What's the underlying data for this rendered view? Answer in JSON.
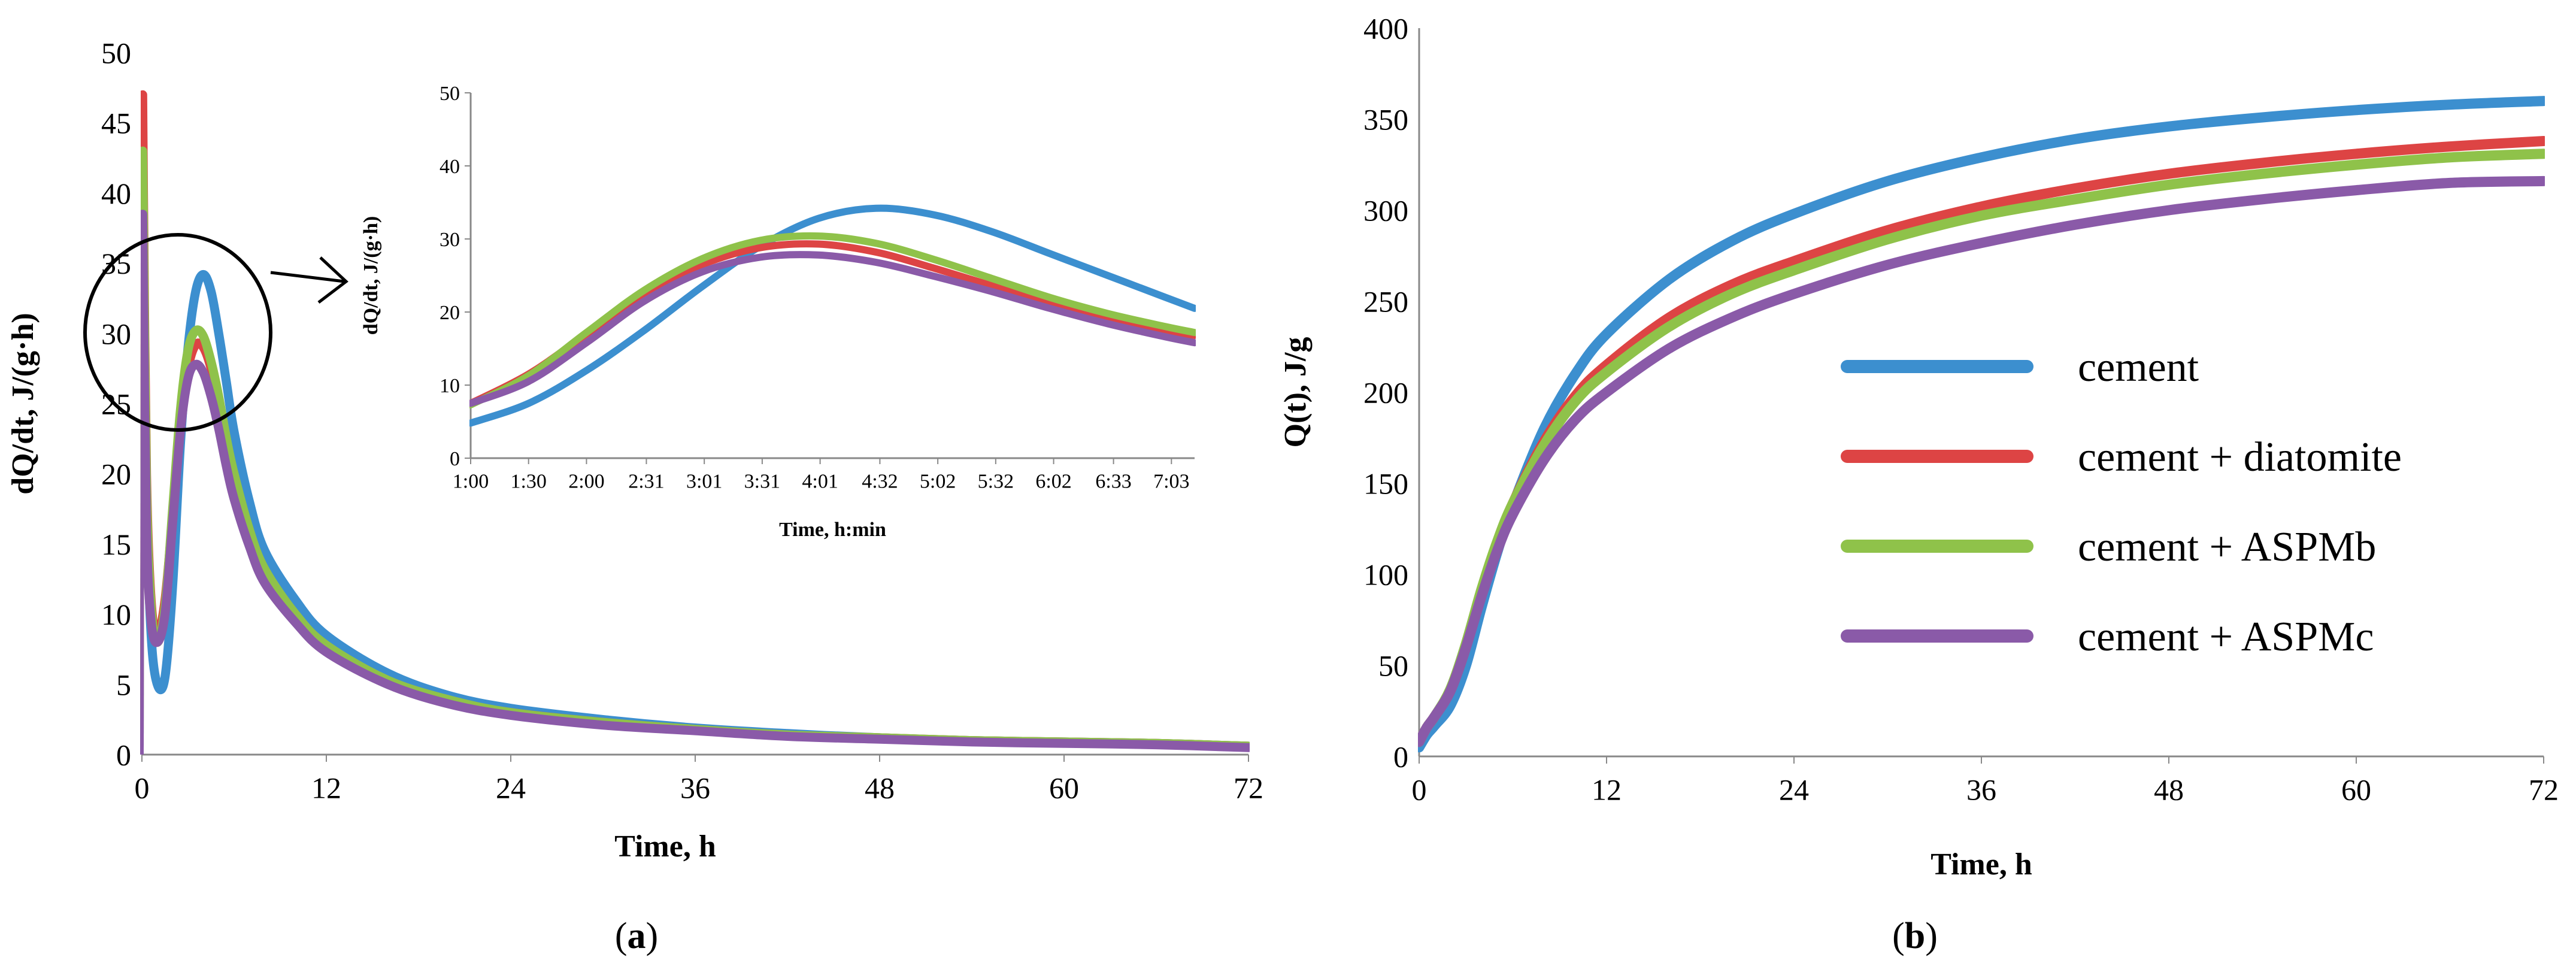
{
  "captions": {
    "a": "a",
    "b": "b"
  },
  "legend_entries": [
    {
      "label": "cement",
      "color": "#3c8fcf"
    },
    {
      "label": "cement + diatomite",
      "color": "#dd4444"
    },
    {
      "label": "cement + ASPMb",
      "color": "#8fc24a"
    },
    {
      "label": "cement + ASPMc",
      "color": "#8a5aa8"
    }
  ],
  "chart_data": [
    {
      "id": "a-main",
      "type": "line",
      "title": "",
      "xlabel": "Time, h",
      "ylabel": "dQ/dt, J/(g·h)",
      "xlim": [
        0,
        72
      ],
      "ylim": [
        0,
        50
      ],
      "xticks": [
        "0",
        "12",
        "24",
        "36",
        "48",
        "60",
        "72"
      ],
      "xtick_values": [
        0,
        12,
        24,
        36,
        48,
        60,
        72
      ],
      "yticks": [
        "0",
        "5",
        "10",
        "15",
        "20",
        "25",
        "30",
        "35",
        "40",
        "45",
        "50"
      ],
      "ytick_values": [
        0,
        5,
        10,
        15,
        20,
        25,
        30,
        35,
        40,
        45,
        50
      ],
      "series": [
        {
          "name": "cement",
          "color": "#3c8fcf",
          "x": [
            0.05,
            0.1,
            0.3,
            0.6,
            1.0,
            1.5,
            2.0,
            2.5,
            3.0,
            3.5,
            4.0,
            4.5,
            5.0,
            5.5,
            6.0,
            7.0,
            8.0,
            10.0,
            12.0,
            16.0,
            20.0,
            24.0,
            30.0,
            36.0,
            42.0,
            48.0,
            54.0,
            60.0,
            66.0,
            72.0
          ],
          "y": [
            38.0,
            34.0,
            18.0,
            8.5,
            5.0,
            5.5,
            12.0,
            22.0,
            29.0,
            33.0,
            34.2,
            33.0,
            30.0,
            26.5,
            23.0,
            18.0,
            14.5,
            11.0,
            8.5,
            5.8,
            4.2,
            3.3,
            2.5,
            1.9,
            1.5,
            1.2,
            1.0,
            0.9,
            0.8,
            0.6
          ]
        },
        {
          "name": "cement + diatomite",
          "color": "#dd4444",
          "x": [
            0.05,
            0.1,
            0.3,
            0.6,
            1.0,
            1.5,
            2.0,
            2.5,
            3.0,
            3.5,
            4.0,
            4.5,
            5.0,
            5.5,
            6.0,
            7.0,
            8.0,
            10.0,
            12.0,
            16.0,
            20.0,
            24.0,
            30.0,
            36.0,
            42.0,
            48.0,
            54.0,
            60.0,
            66.0,
            72.0
          ],
          "y": [
            47.0,
            40.0,
            20.0,
            11.0,
            8.5,
            11.0,
            17.0,
            23.5,
            27.5,
            29.2,
            29.0,
            27.5,
            25.0,
            22.0,
            19.5,
            15.5,
            12.8,
            9.8,
            7.6,
            5.2,
            3.8,
            3.0,
            2.3,
            1.8,
            1.4,
            1.2,
            1.0,
            0.9,
            0.8,
            0.6
          ]
        },
        {
          "name": "cement + ASPMb",
          "color": "#8fc24a",
          "x": [
            0.05,
            0.1,
            0.3,
            0.6,
            1.0,
            1.5,
            2.0,
            2.5,
            3.0,
            3.5,
            4.0,
            4.5,
            5.0,
            5.5,
            6.0,
            7.0,
            8.0,
            10.0,
            12.0,
            16.0,
            20.0,
            24.0,
            30.0,
            36.0,
            42.0,
            48.0,
            54.0,
            60.0,
            66.0,
            72.0
          ],
          "y": [
            43.0,
            38.0,
            19.0,
            10.5,
            8.0,
            10.5,
            17.5,
            24.5,
            28.8,
            30.2,
            29.8,
            28.0,
            25.5,
            22.5,
            20.0,
            16.0,
            13.2,
            10.0,
            7.8,
            5.3,
            3.9,
            3.0,
            2.3,
            1.8,
            1.4,
            1.2,
            1.0,
            0.9,
            0.8,
            0.6
          ]
        },
        {
          "name": "cement + ASPMc",
          "color": "#8a5aa8",
          "x": [
            0.05,
            0.1,
            0.3,
            0.6,
            1.0,
            1.5,
            2.0,
            2.5,
            3.0,
            3.5,
            4.0,
            4.5,
            5.0,
            5.5,
            6.0,
            7.0,
            8.0,
            10.0,
            12.0,
            16.0,
            20.0,
            24.0,
            30.0,
            36.0,
            42.0,
            48.0,
            54.0,
            60.0,
            66.0,
            72.0
          ],
          "y": [
            38.5,
            33.0,
            16.0,
            9.5,
            8.0,
            10.0,
            16.5,
            23.0,
            26.8,
            27.8,
            27.2,
            25.5,
            23.2,
            20.5,
            18.2,
            14.8,
            12.2,
            9.4,
            7.3,
            5.0,
            3.6,
            2.8,
            2.1,
            1.7,
            1.3,
            1.1,
            0.9,
            0.8,
            0.7,
            0.5
          ]
        }
      ]
    },
    {
      "id": "a-inset",
      "type": "line",
      "title": "",
      "xlabel": "Time, h:min",
      "ylabel": "dQ/dt, J/(g·h)",
      "xlim": [
        1.0,
        7.25
      ],
      "ylim": [
        0,
        50
      ],
      "xticks": [
        "1:00",
        "1:30",
        "2:00",
        "2:31",
        "3:01",
        "3:31",
        "4:01",
        "4:32",
        "5:02",
        "5:32",
        "6:02",
        "6:33",
        "7:03"
      ],
      "xtick_values": [
        1.0,
        1.5,
        2.0,
        2.517,
        3.017,
        3.517,
        4.017,
        4.533,
        5.033,
        5.533,
        6.033,
        6.55,
        7.05
      ],
      "yticks": [
        "0",
        "10",
        "20",
        "30",
        "40",
        "50"
      ],
      "ytick_values": [
        0,
        10,
        20,
        30,
        40,
        50
      ],
      "series": [
        {
          "name": "cement",
          "color": "#3c8fcf",
          "x": [
            1.0,
            1.5,
            2.0,
            2.5,
            3.0,
            3.5,
            4.0,
            4.5,
            5.0,
            5.5,
            6.0,
            6.5,
            7.0,
            7.25
          ],
          "y": [
            4.8,
            7.5,
            12.0,
            17.5,
            23.5,
            29.0,
            32.8,
            34.2,
            33.3,
            31.0,
            28.0,
            25.0,
            22.0,
            20.5
          ]
        },
        {
          "name": "cement + diatomite",
          "color": "#dd4444",
          "x": [
            1.0,
            1.5,
            2.0,
            2.5,
            3.0,
            3.5,
            4.0,
            4.5,
            5.0,
            5.5,
            6.0,
            6.5,
            7.0,
            7.25
          ],
          "y": [
            7.5,
            11.5,
            17.0,
            22.5,
            26.5,
            28.8,
            29.3,
            28.2,
            26.0,
            23.6,
            21.3,
            19.2,
            17.5,
            16.8
          ]
        },
        {
          "name": "cement + ASPMb",
          "color": "#8fc24a",
          "x": [
            1.0,
            1.5,
            2.0,
            2.5,
            3.0,
            3.5,
            4.0,
            4.5,
            5.0,
            5.5,
            6.0,
            6.5,
            7.0,
            7.25
          ],
          "y": [
            7.3,
            11.3,
            17.2,
            23.0,
            27.3,
            29.8,
            30.4,
            29.4,
            27.2,
            24.6,
            22.0,
            19.8,
            18.0,
            17.2
          ]
        },
        {
          "name": "cement + ASPMc",
          "color": "#8a5aa8",
          "x": [
            1.0,
            1.5,
            2.0,
            2.5,
            3.0,
            3.5,
            4.0,
            4.5,
            5.0,
            5.5,
            6.0,
            6.5,
            7.0,
            7.25
          ],
          "y": [
            7.5,
            10.5,
            15.8,
            21.5,
            25.5,
            27.5,
            27.8,
            26.8,
            24.9,
            22.8,
            20.5,
            18.4,
            16.6,
            15.8
          ]
        }
      ]
    },
    {
      "id": "b",
      "type": "line",
      "title": "",
      "xlabel": "Time, h",
      "ylabel": "Q(t), J/g",
      "xlim": [
        0,
        72
      ],
      "ylim": [
        0,
        400
      ],
      "xticks": [
        "0",
        "12",
        "24",
        "36",
        "48",
        "60",
        "72"
      ],
      "xtick_values": [
        0,
        12,
        24,
        36,
        48,
        60,
        72
      ],
      "yticks": [
        "0",
        "50",
        "100",
        "150",
        "200",
        "250",
        "300",
        "350",
        "400"
      ],
      "ytick_values": [
        0,
        50,
        100,
        150,
        200,
        250,
        300,
        350,
        400
      ],
      "series": [
        {
          "name": "cement",
          "color": "#3c8fcf",
          "x": [
            0,
            0.5,
            1,
            2,
            3,
            4,
            5,
            6,
            8,
            10,
            12,
            16,
            20,
            24,
            30,
            36,
            42,
            48,
            54,
            60,
            66,
            72
          ],
          "y": [
            5,
            12,
            17,
            28,
            50,
            82,
            112,
            138,
            180,
            210,
            232,
            262,
            283,
            298,
            316,
            329,
            339,
            346,
            351,
            355,
            358,
            360
          ]
        },
        {
          "name": "cement + diatomite",
          "color": "#dd4444",
          "x": [
            0,
            0.5,
            1,
            2,
            3,
            4,
            5,
            6,
            8,
            10,
            12,
            16,
            20,
            24,
            30,
            36,
            42,
            48,
            54,
            60,
            66,
            72
          ],
          "y": [
            8,
            16,
            22,
            36,
            60,
            90,
            117,
            139,
            173,
            198,
            215,
            241,
            259,
            272,
            289,
            302,
            312,
            320,
            326,
            331,
            335,
            338
          ]
        },
        {
          "name": "cement + ASPMb",
          "color": "#8fc24a",
          "x": [
            0,
            0.5,
            1,
            2,
            3,
            4,
            5,
            6,
            8,
            10,
            12,
            16,
            20,
            24,
            30,
            36,
            42,
            48,
            54,
            60,
            66,
            72
          ],
          "y": [
            8,
            16,
            22,
            37,
            62,
            92,
            118,
            139,
            171,
            195,
            211,
            236,
            254,
            267,
            284,
            297,
            306,
            314,
            320,
            325,
            329,
            331
          ]
        },
        {
          "name": "cement + ASPMc",
          "color": "#8a5aa8",
          "x": [
            0,
            0.5,
            1,
            2,
            3,
            4,
            5,
            6,
            8,
            10,
            12,
            16,
            20,
            24,
            30,
            36,
            42,
            48,
            54,
            60,
            66,
            72
          ],
          "y": [
            8,
            16,
            22,
            36,
            60,
            88,
            113,
            133,
            163,
            185,
            200,
            224,
            241,
            254,
            270,
            282,
            292,
            300,
            306,
            311,
            315,
            316
          ]
        }
      ]
    }
  ]
}
